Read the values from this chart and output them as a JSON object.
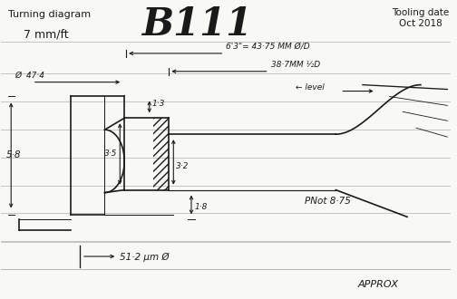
{
  "title_left": "Turning diagram",
  "subtitle_left": "7 mm/ft",
  "title_center": "B111",
  "title_right": "Tooling date\nOct 2018",
  "bg_color": "#f8f8f5",
  "line_color": "#1a1a1a",
  "annotation_dim1": "6'3\"= 43·75 MM Ø/D",
  "annotation_dim2": "38·7MM ½D",
  "annotation_level": "← level →",
  "annotation_1_3": "1·3",
  "annotation_3_5": "3·5",
  "annotation_3_2": "3·2",
  "annotation_1_8": "1·8",
  "annotation_phi_47": "Ø  47·4",
  "annotation_5_8": "5·8",
  "annotation_pin": "PNot 8·75",
  "annotation_51": "51·2 μm Ø",
  "annotation_approx": "APPROX",
  "fig_width": 5.04,
  "fig_height": 3.3,
  "dpi": 100
}
